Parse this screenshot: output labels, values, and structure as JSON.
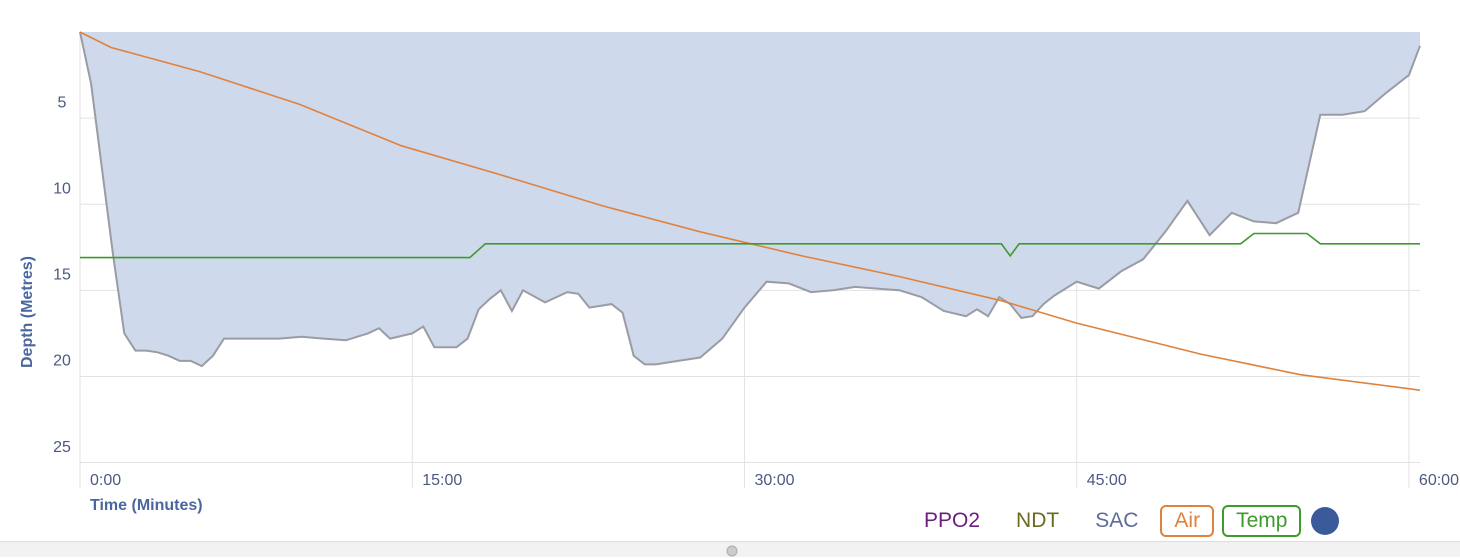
{
  "chart_data": {
    "type": "dive-profile",
    "ylabel": "Depth (Metres)",
    "xlabel": "Time (Minutes)",
    "ylim": [
      0,
      25.2
    ],
    "yticks": [
      5,
      10,
      15,
      20,
      25
    ],
    "inverted_y": true,
    "xlim": [
      0,
      60.5
    ],
    "xticks": [
      {
        "value": 0,
        "label": "0:00"
      },
      {
        "value": 15,
        "label": "15:00"
      },
      {
        "value": 30,
        "label": "30:00"
      },
      {
        "value": 45,
        "label": "45:00"
      },
      {
        "value": 60,
        "label": "60:00"
      }
    ],
    "grid": true,
    "series": [
      {
        "kind": "area",
        "color": "#9a9ca3",
        "fill": "#cfd9ec",
        "x": [
          0,
          0.5,
          1,
          1.5,
          2,
          2.5,
          3,
          3.5,
          4,
          4.5,
          5,
          5.5,
          6,
          6.5,
          7,
          8,
          9,
          10,
          11,
          12,
          13,
          13.5,
          14,
          15,
          15.5,
          16,
          16.5,
          17,
          17.5,
          18,
          18.5,
          19,
          19.5,
          20,
          21,
          22,
          22.5,
          23,
          24,
          24.5,
          25,
          25.5,
          26,
          27,
          28,
          29,
          30,
          31,
          32,
          33,
          34,
          35,
          36,
          37,
          38,
          39,
          40,
          40.5,
          41,
          41.5,
          42,
          42.5,
          43,
          43.5,
          44,
          45,
          46,
          47,
          48,
          49,
          50,
          51,
          52,
          53,
          54,
          55,
          56,
          57,
          58,
          59,
          60,
          60.5
        ],
        "values": [
          0,
          3,
          8,
          13,
          17.5,
          18.5,
          18.5,
          18.6,
          18.8,
          19.1,
          19.1,
          19.4,
          18.8,
          17.8,
          17.8,
          17.8,
          17.8,
          17.7,
          17.8,
          17.9,
          17.5,
          17.2,
          17.8,
          17.5,
          17.1,
          18.3,
          18.3,
          18.3,
          17.8,
          16.1,
          15.5,
          15,
          16.2,
          15,
          15.7,
          15.1,
          15.2,
          16,
          15.8,
          16.3,
          18.8,
          19.3,
          19.3,
          19.1,
          18.9,
          17.8,
          16,
          14.5,
          14.6,
          15.1,
          15,
          14.8,
          14.9,
          15,
          15.4,
          16.2,
          16.5,
          16.1,
          16.5,
          15.4,
          15.8,
          16.6,
          16.5,
          15.8,
          15.3,
          14.5,
          14.9,
          13.9,
          13.2,
          11.6,
          9.8,
          11.8,
          10.5,
          11,
          11.1,
          10.5,
          4.8,
          4.8,
          4.6,
          3.5,
          2.5,
          0.8
        ]
      },
      {
        "kind": "line",
        "name": "Air",
        "color": "#e0823d",
        "x": [
          0,
          1.4,
          5.4,
          9.9,
          14.5,
          19,
          23.6,
          28,
          32.6,
          37,
          41.6,
          45,
          50.6,
          55.1,
          60.5
        ],
        "values": [
          0,
          0.9,
          2.3,
          4.2,
          6.6,
          8.3,
          10.1,
          11.6,
          13,
          14.2,
          15.6,
          16.9,
          18.7,
          19.9,
          20.8
        ]
      },
      {
        "kind": "line",
        "name": "Temp",
        "color": "#3f9a2e",
        "x": [
          0,
          17.6,
          18.3,
          41.6,
          42,
          42.4,
          52.4,
          53,
          55.4,
          56,
          60.5
        ],
        "values": [
          13.1,
          13.1,
          12.3,
          12.3,
          13.0,
          12.3,
          12.3,
          11.7,
          11.7,
          12.3,
          12.3
        ]
      }
    ],
    "toggles": [
      {
        "name": "PPO2",
        "color": "#6a1f7f",
        "active": false
      },
      {
        "name": "NDT",
        "color": "#6b6b1f",
        "active": false
      },
      {
        "name": "SAC",
        "color": "#5d6c9a",
        "active": false
      }
    ]
  }
}
